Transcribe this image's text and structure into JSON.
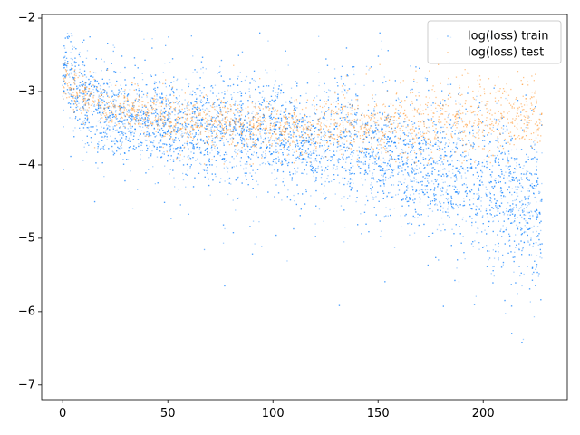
{
  "chart_data": {
    "type": "scatter",
    "title": "",
    "xlabel": "",
    "ylabel": "",
    "xlim": [
      -10,
      240
    ],
    "ylim": [
      -7.2,
      -1.95
    ],
    "xticks": [
      0,
      50,
      100,
      150,
      200
    ],
    "yticks": [
      -2,
      -3,
      -4,
      -5,
      -6,
      -7
    ],
    "x_tick_labels": [
      "0",
      "50",
      "100",
      "150",
      "200"
    ],
    "y_tick_labels": [
      "−2",
      "−3",
      "−4",
      "−5",
      "−6",
      "−7"
    ],
    "grid": false,
    "legend_position": "top-right",
    "series": [
      {
        "name": "log(loss) train",
        "color": "#0a7dff",
        "x": [
          0,
          2,
          5,
          10,
          20,
          30,
          50,
          75,
          100,
          125,
          150,
          175,
          200,
          215,
          228
        ],
        "y_center": [
          -2.8,
          -2.7,
          -2.95,
          -3.1,
          -3.25,
          -3.35,
          -3.45,
          -3.55,
          -3.6,
          -3.7,
          -3.82,
          -4.0,
          -4.3,
          -4.5,
          -4.6
        ],
        "y_spread": [
          0.25,
          0.3,
          0.3,
          0.3,
          0.3,
          0.3,
          0.32,
          0.35,
          0.35,
          0.38,
          0.4,
          0.45,
          0.5,
          0.55,
          0.6
        ],
        "x_range": [
          0,
          228
        ],
        "y_range": [
          -6.6,
          -2.2
        ]
      },
      {
        "name": "log(loss) test",
        "color": "#ff8c1a",
        "x": [
          0,
          5,
          10,
          25,
          50,
          75,
          100,
          125,
          150,
          175,
          200,
          228
        ],
        "y_center": [
          -2.8,
          -2.95,
          -3.05,
          -3.2,
          -3.35,
          -3.45,
          -3.5,
          -3.5,
          -3.45,
          -3.4,
          -3.35,
          -3.35
        ],
        "y_spread": [
          0.15,
          0.15,
          0.15,
          0.15,
          0.15,
          0.15,
          0.15,
          0.2,
          0.2,
          0.25,
          0.25,
          0.25
        ],
        "x_range": [
          0,
          228
        ],
        "y_range": [
          -4.0,
          -2.6
        ]
      }
    ]
  }
}
